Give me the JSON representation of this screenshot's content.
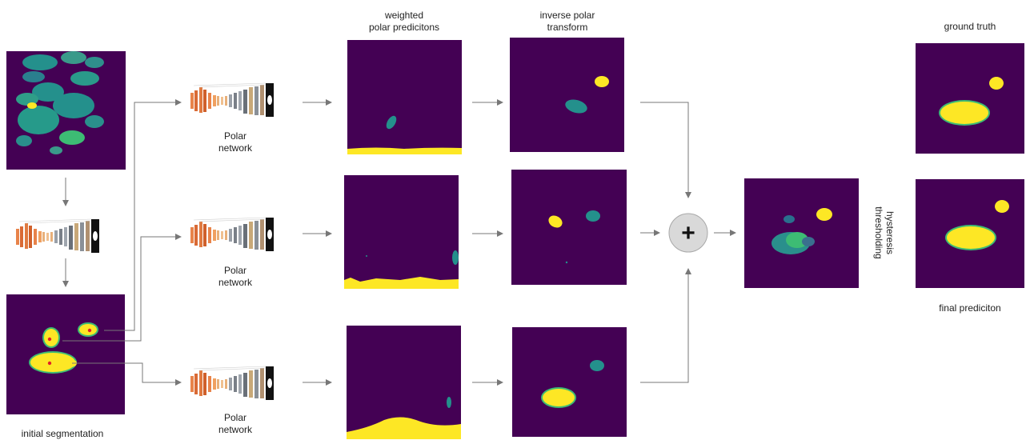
{
  "labels": {
    "weighted": [
      "weighted",
      "polar predicitons"
    ],
    "inverse": [
      "inverse polar",
      "transform"
    ],
    "ground_truth": "ground truth",
    "final_prediction": "final prediciton",
    "initial_segmentation": "initial segmentation",
    "polar_network": [
      "Polar",
      "network"
    ],
    "hysteresis": [
      "hysteresis",
      "thresholding"
    ]
  },
  "symbols": {
    "combine": "+"
  },
  "colors": {
    "background": "#440154",
    "cyan": "#24908c",
    "yellow": "#fde725",
    "green": "#3dbc74",
    "arrow": "#777777",
    "red_dot": "#e0202a"
  }
}
